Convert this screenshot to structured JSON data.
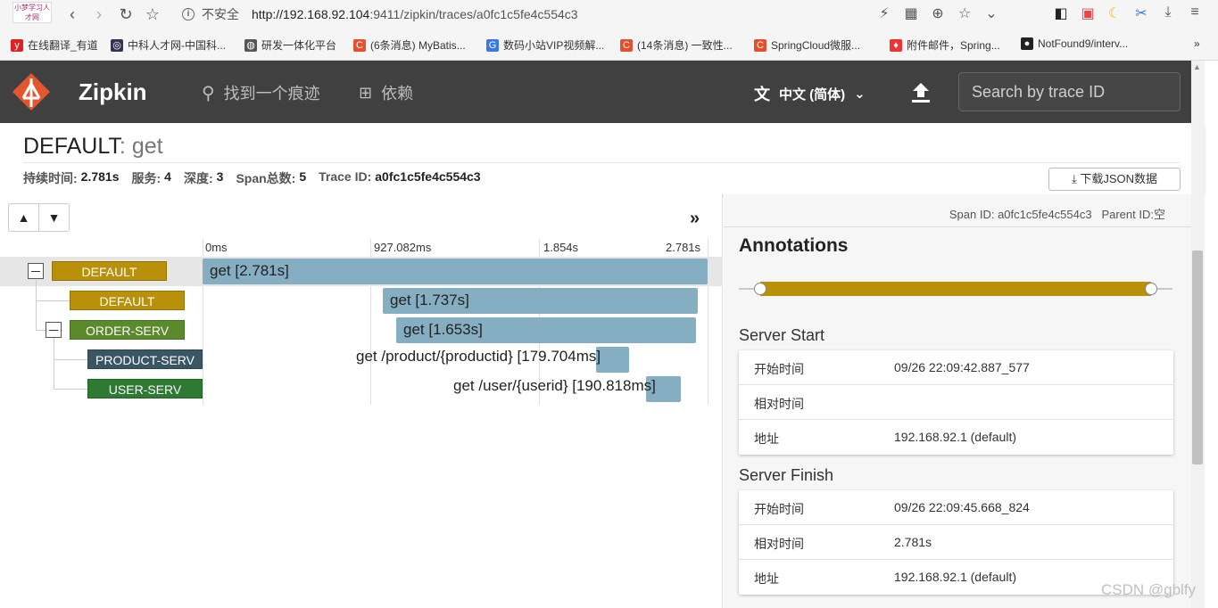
{
  "browser": {
    "favicon_text": "小梦学习人才网",
    "url_insecure": "不安全",
    "url_host": "http://192.168.92.104",
    "url_path": ":9411/zipkin/traces/a0fc1c5fe4c554c3",
    "bookmarks": [
      {
        "label": "在线翻译_有道",
        "icon": "y",
        "color": "#d22"
      },
      {
        "label": "中科人才网-中国科...",
        "icon": "◎",
        "color": "#335"
      },
      {
        "label": "研发一体化平台",
        "icon": "◍",
        "color": "#555"
      },
      {
        "label": "(6条消息) MyBatis...",
        "icon": "C",
        "color": "#e4502b"
      },
      {
        "label": "数码小站VIP视频解...",
        "icon": "G",
        "color": "#3b78e7"
      },
      {
        "label": "(14条消息) 一致性...",
        "icon": "C",
        "color": "#e4502b"
      },
      {
        "label": "SpringCloud微服...",
        "icon": "C",
        "color": "#e4502b"
      },
      {
        "label": "附件邮件，Spring...",
        "icon": "♦",
        "color": "#e33"
      },
      {
        "label": "NotFound9/interv...",
        "icon": "●",
        "color": "#222"
      }
    ],
    "more": "»"
  },
  "header": {
    "brand": "Zipkin",
    "find_trace": "找到一个痕迹",
    "dependencies": "依赖",
    "language": "中文 (简体)",
    "search_placeholder": "Search by trace ID"
  },
  "trace": {
    "service": "DEFAULT",
    "separator": ": ",
    "operation": "get",
    "duration_label": "持续时间:",
    "duration": "2.781s",
    "services_label": "服务:",
    "services": "4",
    "depth_label": "深度:",
    "depth": "3",
    "spans_label": "Span总数:",
    "spans": "5",
    "traceid_label": "Trace ID:",
    "traceid": "a0fc1c5fe4c554c3",
    "download": "下载JSON数据"
  },
  "timeline": {
    "ticks": [
      "0ms",
      "927.082ms",
      "1.854s",
      "2.781s"
    ],
    "rows": [
      {
        "service": "DEFAULT",
        "label": "get [2.781s]",
        "color": "#b8900a"
      },
      {
        "service": "DEFAULT",
        "label": "get [1.737s]",
        "color": "#b8900a"
      },
      {
        "service": "ORDER-SERV",
        "label": "get [1.653s]",
        "color": "#5a8a2a"
      },
      {
        "service": "PRODUCT-SERV",
        "label_pre": "get /product/{productid} [179.704",
        "label_post": "ms]",
        "color": "#3a5563"
      },
      {
        "service": "USER-SERV",
        "label_pre": "get /user/{userid} [190.818",
        "label_post": "ms]",
        "color": "#2e7a32"
      }
    ]
  },
  "detail": {
    "span_id_label": "Span ID:",
    "span_id": "a0fc1c5fe4c554c3",
    "parent_id_label": "Parent ID:",
    "parent_id": "空",
    "annotations_title": "Annotations",
    "server_start": {
      "title": "Server Start",
      "rows": [
        {
          "k": "开始时间",
          "v": "09/26 22:09:42.887_577"
        },
        {
          "k": "相对时间",
          "v": ""
        },
        {
          "k": "地址",
          "v": "192.168.92.1 (default)"
        }
      ]
    },
    "server_finish": {
      "title": "Server Finish",
      "rows": [
        {
          "k": "开始时间",
          "v": "09/26 22:09:45.668_824"
        },
        {
          "k": "相对时间",
          "v": "2.781s"
        },
        {
          "k": "地址",
          "v": "192.168.92.1 (default)"
        }
      ]
    }
  },
  "watermark": "CSDN @gblfy"
}
